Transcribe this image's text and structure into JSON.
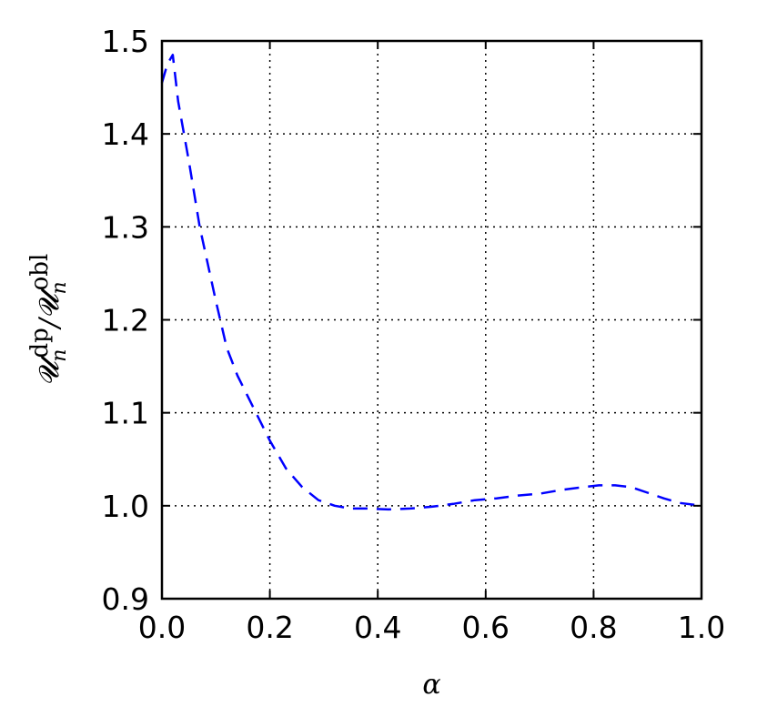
{
  "chart_data": {
    "type": "line",
    "xlabel": "α",
    "ylabel": {
      "main": "𝓤",
      "num_sup": "dp",
      "num_sub": "n",
      "slash": "/",
      "den_sup": "obl",
      "den_sub": "n"
    },
    "xlim": [
      0.0,
      1.0
    ],
    "ylim": [
      0.9,
      1.5
    ],
    "xticks": [
      "0.0",
      "0.2",
      "0.4",
      "0.6",
      "0.8",
      "1.0"
    ],
    "yticks": [
      "0.9",
      "1.0",
      "1.1",
      "1.2",
      "1.3",
      "1.4",
      "1.5"
    ],
    "grid": true,
    "series": [
      {
        "line_style": "dashed",
        "color": "#0000ff",
        "x": [
          0.0,
          0.01,
          0.02,
          0.03,
          0.05,
          0.07,
          0.1,
          0.12,
          0.14,
          0.17,
          0.2,
          0.23,
          0.26,
          0.29,
          0.32,
          0.35,
          0.38,
          0.42,
          0.46,
          0.5,
          0.54,
          0.58,
          0.62,
          0.66,
          0.7,
          0.74,
          0.78,
          0.81,
          0.84,
          0.87,
          0.9,
          0.93,
          0.96,
          1.0
        ],
        "y": [
          1.455,
          1.475,
          1.485,
          1.435,
          1.37,
          1.3,
          1.22,
          1.17,
          1.14,
          1.105,
          1.07,
          1.04,
          1.02,
          1.006,
          1.0,
          0.997,
          0.997,
          0.996,
          0.997,
          0.999,
          1.002,
          1.006,
          1.008,
          1.011,
          1.013,
          1.017,
          1.02,
          1.022,
          1.022,
          1.02,
          1.014,
          1.008,
          1.003,
          1.0
        ]
      }
    ]
  }
}
